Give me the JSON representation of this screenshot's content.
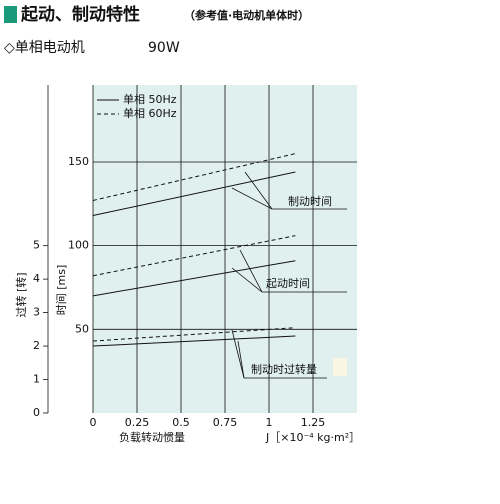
{
  "chart_data": {
    "type": "line",
    "title": "起动、制动特性",
    "subtitle": "（参考值·电动机单体时）",
    "heading": "◇单相电动机",
    "model": "90W",
    "x_label": "负载转动惯量",
    "x_unit_label": "J［×10⁻⁴ kg·m²］",
    "y_label": "时间 [ms]",
    "y2_label": "过转 [转]",
    "xlim": [
      0,
      1.5
    ],
    "xticks": [
      0,
      0.25,
      0.5,
      0.75,
      1,
      1.25
    ],
    "ylim": [
      0,
      196
    ],
    "yticks": [
      50,
      100,
      150
    ],
    "y2lim": [
      0,
      9.8
    ],
    "y2ticks": [
      0,
      1,
      2,
      3,
      4,
      5
    ],
    "grid": true,
    "plot_color": "#dff0ef",
    "legend_entries": [
      {
        "label": "单相 50Hz",
        "dashed": false
      },
      {
        "label": "单相 60Hz",
        "dashed": true
      }
    ],
    "series": [
      {
        "dashed": false,
        "color": "#111",
        "x": [
          0,
          1.15
        ],
        "values": [
          118,
          144
        ]
      },
      {
        "dashed": true,
        "color": "#111",
        "x": [
          0,
          1.15
        ],
        "values": [
          127,
          155
        ]
      },
      {
        "dashed": false,
        "color": "#111",
        "x": [
          0,
          1.15
        ],
        "values": [
          70,
          91
        ]
      },
      {
        "dashed": true,
        "color": "#111",
        "x": [
          0,
          1.15
        ],
        "values": [
          82,
          106
        ]
      },
      {
        "dashed": false,
        "color": "#111",
        "x": [
          0,
          1.15
        ],
        "values": [
          2.0,
          2.3
        ],
        "axis": "y2"
      },
      {
        "dashed": true,
        "color": "#111",
        "x": [
          0,
          1.15
        ],
        "values": [
          2.15,
          2.55
        ],
        "axis": "y2"
      }
    ],
    "annotations": [
      "制动时间",
      "起动时间",
      "制动时过转量"
    ]
  }
}
